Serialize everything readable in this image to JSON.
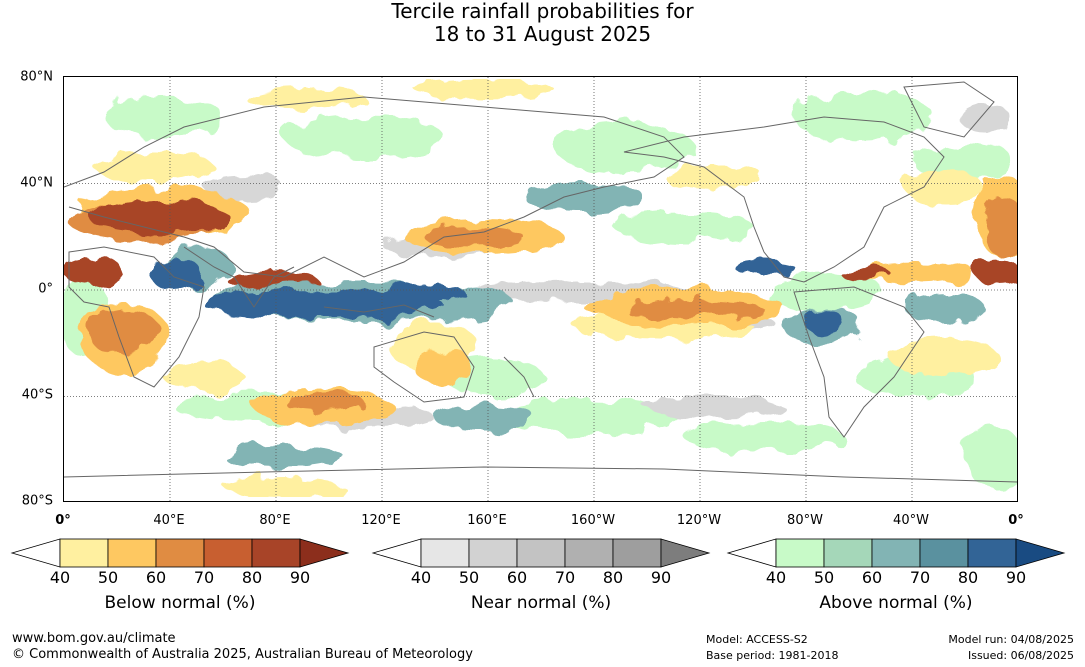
{
  "title": {
    "line1": "Tercile rainfall probabilities for",
    "line2": "18 to 31 August 2025"
  },
  "map": {
    "lat_labels": [
      "80°N",
      "40°N",
      "0°",
      "40°S",
      "80°S"
    ],
    "lon_labels": [
      "0°",
      "40°E",
      "80°E",
      "120°E",
      "160°E",
      "160°W",
      "120°W",
      "80°W",
      "40°W",
      "0°"
    ],
    "grid": true
  },
  "colorbars": [
    {
      "title": "Below normal (%)",
      "ticks": [
        "40",
        "50",
        "60",
        "70",
        "80",
        "90"
      ],
      "colors": [
        "#ffffff",
        "#fff0a0",
        "#fec861",
        "#e08c42",
        "#c85f30",
        "#a84428",
        "#8c2e1c"
      ]
    },
    {
      "title": "Near normal (%)",
      "ticks": [
        "40",
        "50",
        "60",
        "70",
        "80",
        "90"
      ],
      "colors": [
        "#ffffff",
        "#e6e6e6",
        "#d2d2d2",
        "#c3c3c3",
        "#b0b0b0",
        "#9e9e9e",
        "#7d7d7d"
      ]
    },
    {
      "title": "Above normal (%)",
      "ticks": [
        "40",
        "50",
        "60",
        "70",
        "80",
        "90"
      ],
      "colors": [
        "#ffffff",
        "#c8fac8",
        "#a5d7b9",
        "#82b4b4",
        "#5a919f",
        "#326496",
        "#194b82"
      ]
    }
  ],
  "footer": {
    "website": "www.bom.gov.au/climate",
    "copyright": "© Commonwealth of Australia 2025, Australian Bureau of Meteorology",
    "model": "Model: ACCESS-S2",
    "base_period": "Base period: 1981-2018",
    "model_run": "Model run: 04/08/2025",
    "issued": "Issued: 06/08/2025"
  }
}
